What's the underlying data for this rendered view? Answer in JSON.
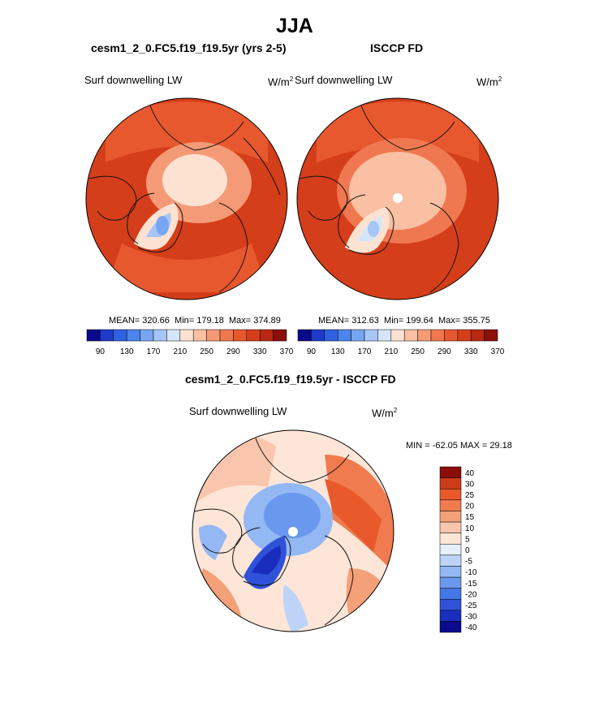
{
  "figure_title": "JJA",
  "panels": [
    {
      "id": "model",
      "case": "cesm1_2_0.FC5.f19_f19.5yr (yrs 2-5)",
      "variable": "Surf downwelling LW",
      "units": "W/m",
      "units_sup": "2",
      "stats": {
        "mean": "MEAN= 320.66",
        "min": "Min= 179.18",
        "max": "Max= 374.89"
      }
    },
    {
      "id": "obs",
      "case": "ISCCP FD",
      "variable": "Surf downwelling LW",
      "units": "W/m",
      "units_sup": "2",
      "stats": {
        "mean": "MEAN= 312.63",
        "min": "Min= 199.64",
        "max": "Max= 355.75"
      }
    },
    {
      "id": "diff",
      "case": "cesm1_2_0.FC5.f19_f19.5yr - ISCCP FD",
      "variable": "Surf downwelling LW",
      "units": "W/m",
      "units_sup": "2",
      "stats": {
        "minmax": "MIN = -62.05 MAX =  29.18"
      }
    }
  ],
  "abs_colorbar": {
    "colors": [
      "#0a0a8c",
      "#1e3cc8",
      "#2f62e0",
      "#4c84ec",
      "#78a6f2",
      "#a6c6f6",
      "#d6e6fa",
      "#fde2d2",
      "#f9c0a3",
      "#f59a76",
      "#f07850",
      "#e8582e",
      "#d53e1a",
      "#b82812",
      "#8c0e0a"
    ],
    "tick_labels": [
      "90",
      "130",
      "170",
      "210",
      "250",
      "290",
      "330",
      "370"
    ]
  },
  "diff_colorbar": {
    "colors": [
      "#0a0a8c",
      "#1a2ebe",
      "#2f52d8",
      "#4677e6",
      "#6a98ee",
      "#93b8f4",
      "#bdd4f8",
      "#e6f0fc",
      "#fde6d8",
      "#f9c6ad",
      "#f4a078",
      "#ef7b4e",
      "#e85a2c",
      "#cc3c18",
      "#8c0e0a"
    ],
    "tick_labels": [
      "40",
      "30",
      "25",
      "20",
      "15",
      "10",
      "5",
      "0",
      "-5",
      "-10",
      "-15",
      "-20",
      "-25",
      "-30",
      "-40"
    ]
  },
  "chart_data": [
    {
      "type": "heatmap",
      "title": "cesm1_2_0.FC5.f19_f19.5yr (yrs 2-5)",
      "variable": "Surf downwelling LW",
      "units": "W/m2",
      "mean": 320.66,
      "min": 179.18,
      "max": 374.89,
      "levels": [
        90,
        110,
        130,
        150,
        170,
        190,
        210,
        230,
        250,
        270,
        290,
        310,
        330,
        350,
        370
      ]
    },
    {
      "type": "heatmap",
      "title": "ISCCP FD",
      "variable": "Surf downwelling LW",
      "units": "W/m2",
      "mean": 312.63,
      "min": 199.64,
      "max": 355.75,
      "levels": [
        90,
        110,
        130,
        150,
        170,
        190,
        210,
        230,
        250,
        270,
        290,
        310,
        330,
        350,
        370
      ]
    },
    {
      "type": "heatmap",
      "title": "cesm1_2_0.FC5.f19_f19.5yr - ISCCP FD",
      "variable": "Surf downwelling LW",
      "units": "W/m2",
      "min": -62.05,
      "max": 29.18,
      "levels": [
        -40,
        -30,
        -25,
        -20,
        -15,
        -10,
        -5,
        0,
        5,
        10,
        15,
        20,
        25,
        30,
        40
      ]
    }
  ]
}
